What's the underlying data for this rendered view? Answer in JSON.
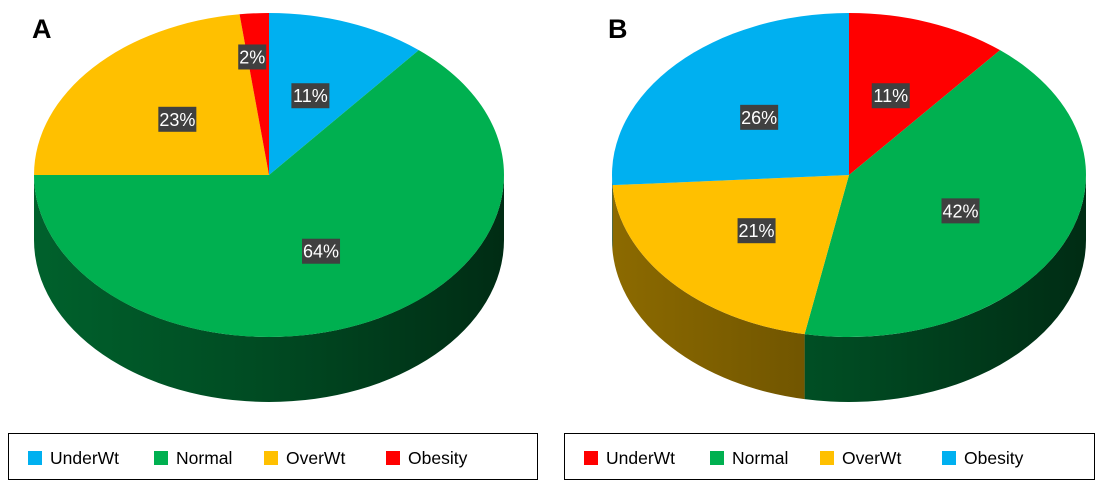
{
  "chart_data": [
    {
      "panel": "A",
      "type": "pie",
      "categories": [
        "UnderWt",
        "Normal",
        "OverWt",
        "Obesity"
      ],
      "values": [
        11,
        64,
        23,
        2
      ],
      "labels": [
        "11%",
        "64%",
        "23%",
        "2%"
      ],
      "colors": [
        "#00B0F0",
        "#00B050",
        "#FFC000",
        "#FF0000"
      ],
      "legend": "bottom",
      "style": "3d"
    },
    {
      "panel": "B",
      "type": "pie",
      "categories": [
        "UnderWt",
        "Normal",
        "OverWt",
        "Obesity"
      ],
      "values": [
        11,
        42,
        21,
        26
      ],
      "labels": [
        "11%",
        "42%",
        "21%",
        "26%"
      ],
      "colors": [
        "#FF0000",
        "#00B050",
        "#FFC000",
        "#00B0F0"
      ],
      "legend": "bottom",
      "style": "3d"
    }
  ]
}
